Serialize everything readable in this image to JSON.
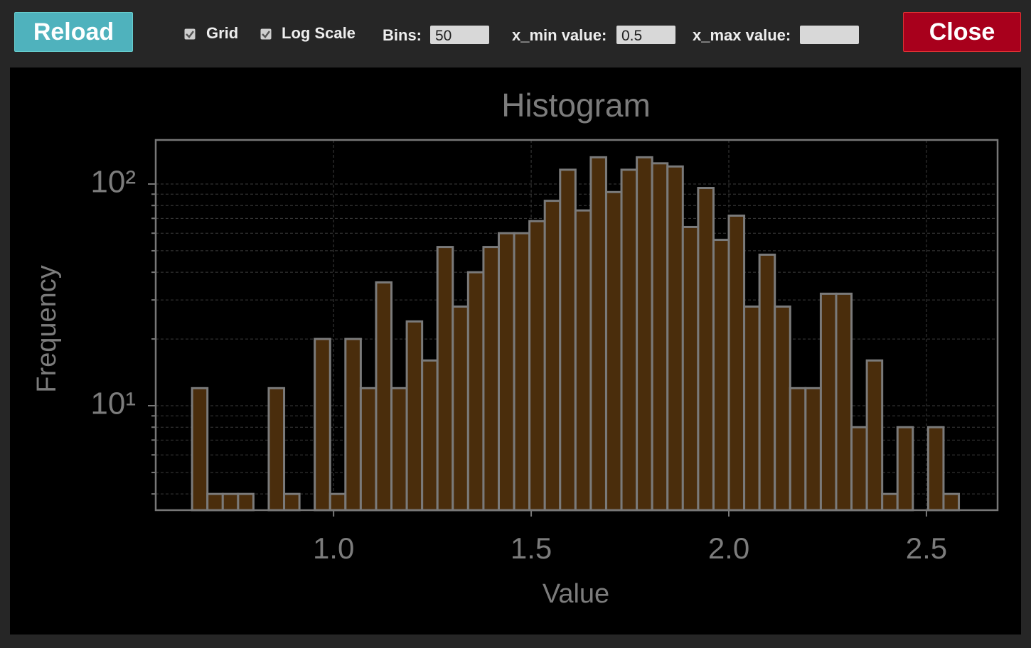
{
  "toolbar": {
    "reload": "Reload",
    "grid_label": "Grid",
    "log_label": "Log Scale",
    "bins_label": "Bins:",
    "bins_value": "50",
    "xmin_label": "x_min value:",
    "xmin_value": "0.5",
    "xmax_label": "x_max value:",
    "close": "Close"
  },
  "chart_data": {
    "type": "histogram",
    "title": "Histogram",
    "x_label": "Value",
    "y_label": "Frequency",
    "bins": [
      0.642,
      0.6808,
      0.7196,
      0.7584,
      0.7972,
      0.836,
      0.8748,
      0.9136,
      0.9524,
      0.9912,
      1.03,
      1.0688,
      1.1076,
      1.1464,
      1.1852,
      1.224,
      1.2628,
      1.3016,
      1.3404,
      1.3792,
      1.418,
      1.4568,
      1.4956,
      1.5344,
      1.5732,
      1.612,
      1.6508,
      1.6896,
      1.7284,
      1.7672,
      1.806,
      1.8448,
      1.8836,
      1.9224,
      1.9612,
      2.0,
      2.0388,
      2.0776,
      2.1164,
      2.1552,
      2.194,
      2.2328,
      2.2716,
      2.3104,
      2.3492,
      2.388,
      2.4268,
      2.4656,
      2.5044,
      2.5432,
      2.582
    ],
    "counts": [
      12,
      4,
      4,
      4,
      0,
      12,
      4,
      0,
      20,
      4,
      20,
      12,
      36,
      12,
      24,
      16,
      52,
      28,
      40,
      52,
      60,
      60,
      68,
      84,
      116,
      76,
      132,
      92,
      116,
      132,
      124,
      120,
      64,
      96,
      56,
      72,
      28,
      48,
      28,
      12,
      12,
      32,
      32,
      8,
      16,
      4,
      8,
      0,
      8,
      4
    ],
    "color": "#4a2d0c",
    "edge_color": "#7a7a7a",
    "xlim": [
      0.55,
      2.68
    ],
    "xticks": [
      {
        "value": 1.0,
        "label": "1.0"
      },
      1.5,
      {
        "value": 2.0,
        "label": "2.0"
      },
      2.5
    ],
    "ylim": [
      3.38,
      158
    ],
    "yticks": [
      {
        "value": 10,
        "label": "10¹"
      },
      {
        "value": 100,
        "label": "10²"
      }
    ],
    "yminor_ticks": [
      4,
      5,
      6,
      7,
      8,
      9,
      20,
      30,
      40,
      50,
      60,
      70,
      80,
      90
    ],
    "log_y": true,
    "grid": true
  }
}
